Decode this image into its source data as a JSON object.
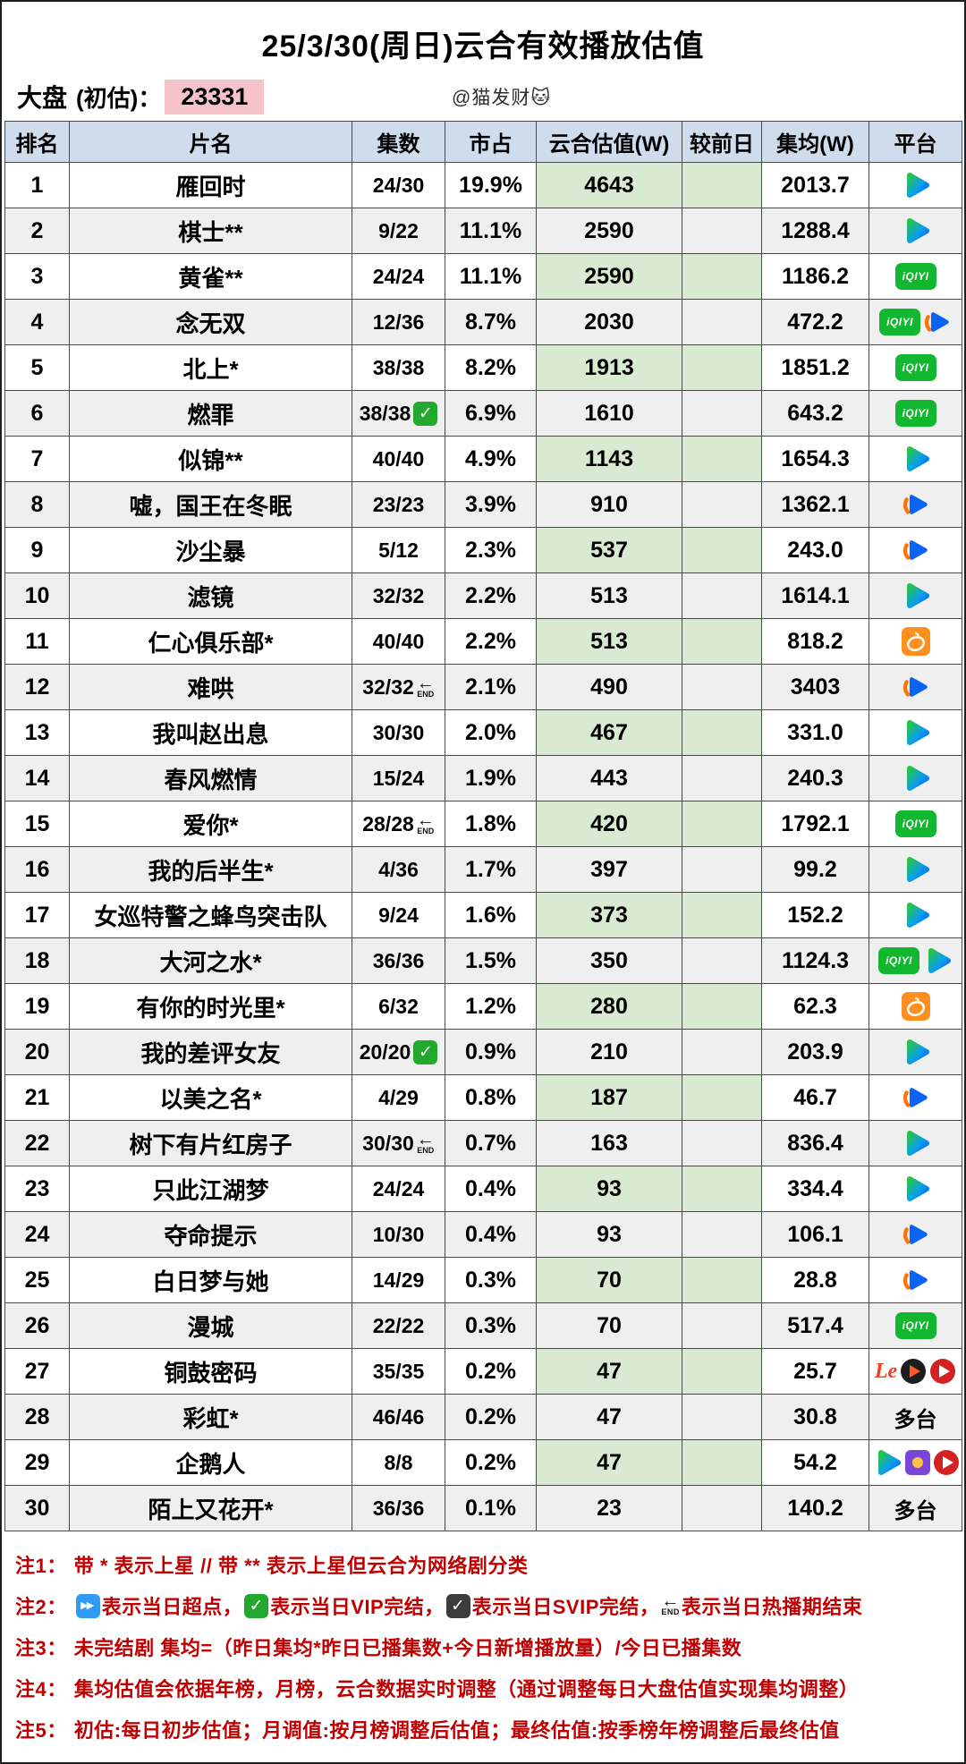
{
  "header": {
    "title": "25/3/30(周日)云合有效播放估值",
    "market_label": "大盘",
    "market_paren": "(初估)：",
    "market_value": "23331",
    "watermark": "@猫发财🐱"
  },
  "chart_data": {
    "type": "table",
    "title": "25/3/30(周日)云合有效播放估值",
    "market_total_estimate": "23331",
    "columns": [
      "排名",
      "片名",
      "集数",
      "市占",
      "云合估值(W)",
      "较前日",
      "集均(W)",
      "平台"
    ],
    "rows": [
      {
        "rank": "1",
        "title": "雁回时",
        "eps": "24/30",
        "badge": "",
        "share": "19.9%",
        "est": "4643",
        "prev": "",
        "avg": "2013.7",
        "avg_hl": false,
        "icons": [
          "tencent"
        ],
        "ptext": ""
      },
      {
        "rank": "2",
        "title": "棋士**",
        "eps": "9/22",
        "badge": "",
        "share": "11.1%",
        "est": "2590",
        "prev": "",
        "avg": "1288.4",
        "avg_hl": false,
        "icons": [
          "tencent"
        ],
        "ptext": ""
      },
      {
        "rank": "3",
        "title": "黄雀**",
        "eps": "24/24",
        "badge": "",
        "share": "11.1%",
        "est": "2590",
        "prev": "",
        "avg": "1186.2",
        "avg_hl": false,
        "icons": [
          "iqiyi"
        ],
        "ptext": ""
      },
      {
        "rank": "4",
        "title": "念无双",
        "eps": "12/36",
        "badge": "",
        "share": "8.7%",
        "est": "2030",
        "prev": "",
        "avg": "472.2",
        "avg_hl": false,
        "icons": [
          "iqiyi",
          "youku"
        ],
        "ptext": ""
      },
      {
        "rank": "5",
        "title": "北上*",
        "eps": "38/38",
        "badge": "",
        "share": "8.2%",
        "est": "1913",
        "prev": "",
        "avg": "1851.2",
        "avg_hl": false,
        "icons": [
          "iqiyi"
        ],
        "ptext": ""
      },
      {
        "rank": "6",
        "title": "燃罪",
        "eps": "38/38",
        "badge": "vip",
        "share": "6.9%",
        "est": "1610",
        "prev": "",
        "avg": "643.2",
        "avg_hl": false,
        "icons": [
          "iqiyi"
        ],
        "ptext": ""
      },
      {
        "rank": "7",
        "title": "似锦**",
        "eps": "40/40",
        "badge": "",
        "share": "4.9%",
        "est": "1143",
        "prev": "",
        "avg": "1654.3",
        "avg_hl": false,
        "icons": [
          "tencent"
        ],
        "ptext": ""
      },
      {
        "rank": "8",
        "title": "嘘，国王在冬眠",
        "eps": "23/23",
        "badge": "",
        "share": "3.9%",
        "est": "910",
        "prev": "",
        "avg": "1362.1",
        "avg_hl": false,
        "icons": [
          "youku"
        ],
        "ptext": ""
      },
      {
        "rank": "9",
        "title": "沙尘暴",
        "eps": "5/12",
        "badge": "",
        "share": "2.3%",
        "est": "537",
        "prev": "",
        "avg": "243.0",
        "avg_hl": false,
        "icons": [
          "youku"
        ],
        "ptext": ""
      },
      {
        "rank": "10",
        "title": "滤镜",
        "eps": "32/32",
        "badge": "",
        "share": "2.2%",
        "est": "513",
        "prev": "",
        "avg": "1614.1",
        "avg_hl": false,
        "icons": [
          "tencent"
        ],
        "ptext": ""
      },
      {
        "rank": "11",
        "title": "仁心俱乐部*",
        "eps": "40/40",
        "badge": "",
        "share": "2.2%",
        "est": "513",
        "prev": "",
        "avg": "818.2",
        "avg_hl": false,
        "icons": [
          "mango"
        ],
        "ptext": ""
      },
      {
        "rank": "12",
        "title": "难哄",
        "eps": "32/32",
        "badge": "end",
        "share": "2.1%",
        "est": "490",
        "prev": "",
        "avg": "3403",
        "avg_hl": true,
        "icons": [
          "youku"
        ],
        "ptext": ""
      },
      {
        "rank": "13",
        "title": "我叫赵出息",
        "eps": "30/30",
        "badge": "",
        "share": "2.0%",
        "est": "467",
        "prev": "",
        "avg": "331.0",
        "avg_hl": false,
        "icons": [
          "tencent"
        ],
        "ptext": ""
      },
      {
        "rank": "14",
        "title": "春风燃情",
        "eps": "15/24",
        "badge": "",
        "share": "1.9%",
        "est": "443",
        "prev": "",
        "avg": "240.3",
        "avg_hl": false,
        "icons": [
          "tencent"
        ],
        "ptext": ""
      },
      {
        "rank": "15",
        "title": "爱你*",
        "eps": "28/28",
        "badge": "end",
        "share": "1.8%",
        "est": "420",
        "prev": "",
        "avg": "1792.1",
        "avg_hl": false,
        "icons": [
          "iqiyi"
        ],
        "ptext": ""
      },
      {
        "rank": "16",
        "title": "我的后半生*",
        "eps": "4/36",
        "badge": "",
        "share": "1.7%",
        "est": "397",
        "prev": "",
        "avg": "99.2",
        "avg_hl": false,
        "icons": [
          "tencent"
        ],
        "ptext": ""
      },
      {
        "rank": "17",
        "title": "女巡特警之蜂鸟突击队",
        "eps": "9/24",
        "badge": "",
        "share": "1.6%",
        "est": "373",
        "prev": "",
        "avg": "152.2",
        "avg_hl": false,
        "icons": [
          "tencent"
        ],
        "ptext": ""
      },
      {
        "rank": "18",
        "title": "大河之水*",
        "eps": "36/36",
        "badge": "",
        "share": "1.5%",
        "est": "350",
        "prev": "",
        "avg": "1124.3",
        "avg_hl": false,
        "icons": [
          "iqiyi",
          "tencent"
        ],
        "ptext": ""
      },
      {
        "rank": "19",
        "title": "有你的时光里*",
        "eps": "6/32",
        "badge": "",
        "share": "1.2%",
        "est": "280",
        "prev": "",
        "avg": "62.3",
        "avg_hl": false,
        "icons": [
          "mango"
        ],
        "ptext": ""
      },
      {
        "rank": "20",
        "title": "我的差评女友",
        "eps": "20/20",
        "badge": "vip",
        "share": "0.9%",
        "est": "210",
        "prev": "",
        "avg": "203.9",
        "avg_hl": false,
        "icons": [
          "tencent"
        ],
        "ptext": ""
      },
      {
        "rank": "21",
        "title": "以美之名*",
        "eps": "4/29",
        "badge": "",
        "share": "0.8%",
        "est": "187",
        "prev": "",
        "avg": "46.7",
        "avg_hl": false,
        "icons": [
          "youku"
        ],
        "ptext": ""
      },
      {
        "rank": "22",
        "title": "树下有片红房子",
        "eps": "30/30",
        "badge": "end",
        "share": "0.7%",
        "est": "163",
        "prev": "",
        "avg": "836.4",
        "avg_hl": false,
        "icons": [
          "tencent"
        ],
        "ptext": ""
      },
      {
        "rank": "23",
        "title": "只此江湖梦",
        "eps": "24/24",
        "badge": "",
        "share": "0.4%",
        "est": "93",
        "prev": "",
        "avg": "334.4",
        "avg_hl": false,
        "icons": [
          "tencent"
        ],
        "ptext": ""
      },
      {
        "rank": "24",
        "title": "夺命提示",
        "eps": "10/30",
        "badge": "",
        "share": "0.4%",
        "est": "93",
        "prev": "",
        "avg": "106.1",
        "avg_hl": false,
        "icons": [
          "youku"
        ],
        "ptext": ""
      },
      {
        "rank": "25",
        "title": "白日梦与她",
        "eps": "14/29",
        "badge": "",
        "share": "0.3%",
        "est": "70",
        "prev": "",
        "avg": "28.8",
        "avg_hl": false,
        "icons": [
          "youku"
        ],
        "ptext": ""
      },
      {
        "rank": "26",
        "title": "漫城",
        "eps": "22/22",
        "badge": "",
        "share": "0.3%",
        "est": "70",
        "prev": "",
        "avg": "517.4",
        "avg_hl": false,
        "icons": [
          "iqiyi"
        ],
        "ptext": ""
      },
      {
        "rank": "27",
        "title": "铜鼓密码",
        "eps": "35/35",
        "badge": "",
        "share": "0.2%",
        "est": "47",
        "prev": "",
        "avg": "25.7",
        "avg_hl": false,
        "icons": [
          "le",
          "dark-play",
          "red-play"
        ],
        "ptext": ""
      },
      {
        "rank": "28",
        "title": "彩虹*",
        "eps": "46/46",
        "badge": "",
        "share": "0.2%",
        "est": "47",
        "prev": "",
        "avg": "30.8",
        "avg_hl": false,
        "icons": [],
        "ptext": "多台"
      },
      {
        "rank": "29",
        "title": "企鹅人",
        "eps": "8/8",
        "badge": "",
        "share": "0.2%",
        "est": "47",
        "prev": "",
        "avg": "54.2",
        "avg_hl": false,
        "icons": [
          "tencent",
          "purple-sq",
          "red-play"
        ],
        "ptext": ""
      },
      {
        "rank": "30",
        "title": "陌上又花开*",
        "eps": "36/36",
        "badge": "",
        "share": "0.1%",
        "est": "23",
        "prev": "",
        "avg": "140.2",
        "avg_hl": false,
        "icons": [],
        "ptext": "多台"
      }
    ]
  },
  "notes": [
    {
      "label": "注1：",
      "segments": [
        {
          "t": "text",
          "v": "带 * 表示上星 // 带 ** 表示上星但云合为网络剧分类"
        }
      ]
    },
    {
      "label": "注2：",
      "segments": [
        {
          "t": "icon",
          "v": "ff"
        },
        {
          "t": "text",
          "v": "表示当日超点，"
        },
        {
          "t": "icon",
          "v": "vip"
        },
        {
          "t": "text",
          "v": "表示当日VIP完结，"
        },
        {
          "t": "icon",
          "v": "svip"
        },
        {
          "t": "text",
          "v": "表示当日SVIP完结，"
        },
        {
          "t": "icon",
          "v": "end"
        },
        {
          "t": "text",
          "v": "表示当日热播期结束"
        }
      ]
    },
    {
      "label": "注3：",
      "segments": [
        {
          "t": "text",
          "v": "未完结剧 集均=（昨日集均*昨日已播集数+今日新增播放量）/今日已播集数"
        }
      ]
    },
    {
      "label": "注4：",
      "segments": [
        {
          "t": "text",
          "v": "集均估值会依据年榜，月榜，云合数据实时调整（通过调整每日大盘估值实现集均调整）"
        }
      ]
    },
    {
      "label": "注5：",
      "segments": [
        {
          "t": "text",
          "v": "初估:每日初步估值；月调值:按月榜调整后估值；最终估值:按季榜年榜调整后最终估值"
        }
      ]
    }
  ],
  "colors": {
    "header_bg": "#cfdcec",
    "green_cell": "#d9ead3",
    "pink_highlight": "#f7c3cb",
    "orange_highlight": "#fbd7c2",
    "note_red": "#c00000",
    "row_alt_bg": "#efefef",
    "grid_border": "#4a4a4a"
  }
}
